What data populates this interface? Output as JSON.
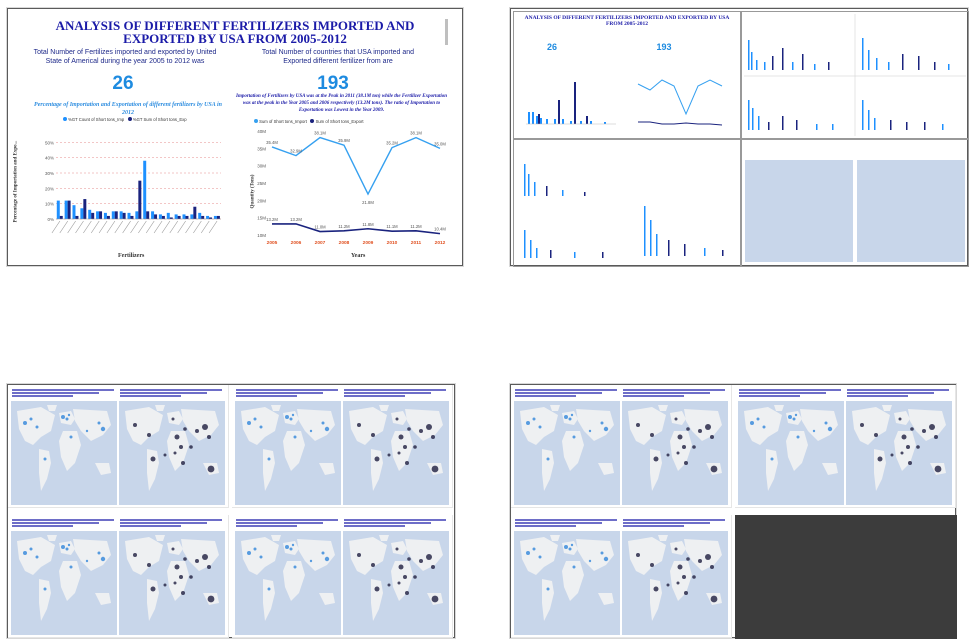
{
  "main_panel": {
    "title": "ANALYSIS OF DIFFERENT FERTILIZERS IMPORTED AND EXPORTED BY USA FROM 2005-2012",
    "left_caption": "Total Number of Fertilizes imported and exported by United State of Americal during the year 2005 to 2012 was",
    "left_number": "26",
    "right_caption": "Total Number of countries that USA imported and Exported different fertilizer from are",
    "right_number": "193",
    "bar_subtitle": "Percentage of Importation and Exportation of different fertilizers by USA in 2012",
    "line_subtitle": "Importation of Fertilizers by USA was at the Peak in 2011 (38.1M ton) while the Fertilizer Exportation was at the peak in the Year 2005 and 2006 respectively (13.2M tons). The ratio of Importation to Exportation was Lowest in the Year 2009.",
    "bar_legend": [
      "%GT Count of Short tons_Imp",
      "%GT Sum of Short tons_Exp"
    ],
    "line_legend": [
      "Sum of Short tons_Import",
      "Sum of Short tons_Export"
    ],
    "bar_xlabel": "Fertilizers",
    "bar_ylabel": "Percentage of Importation and Expo...",
    "line_xlabel": "Years",
    "line_ylabel": "Quantity (Tons)"
  },
  "colors": {
    "title": "#1b1ba8",
    "import": "#1e90ff",
    "export": "#1a237e",
    "line_import": "#35a0f0",
    "line_export": "#1a237e",
    "dark_tile": "#3c3c3c"
  },
  "chart_data": [
    {
      "type": "bar",
      "title": "Percentage of Importation and Exportation of different fertilizers by USA in 2012",
      "xlabel": "Fertilizers",
      "ylabel": "Percentage of Importation and Expo...",
      "ylim": [
        0,
        60
      ],
      "yticks": [
        "0%",
        "10%",
        "20%",
        "30%",
        "40%",
        "50%"
      ],
      "series": [
        {
          "name": "%GT Count of Short tons_Imp",
          "values": [
            12,
            12,
            9,
            7,
            6,
            5,
            4,
            5,
            5,
            4,
            5,
            38,
            5,
            3,
            4,
            3,
            3,
            3,
            4,
            2,
            2
          ]
        },
        {
          "name": "%GT Sum of Short tons_Exp",
          "values": [
            2,
            12,
            2,
            13,
            4,
            5,
            2,
            5,
            4,
            2,
            25,
            5,
            3,
            2,
            1,
            2,
            2,
            8,
            2,
            1,
            2
          ]
        }
      ],
      "grid": true,
      "legend": "top-left"
    },
    {
      "type": "line",
      "title": "Importation of Fertilizers by USA was at the Peak in 2011 (38.1M ton) while the Fertilizer Exportation was at the peak in the Year 2005 and 2006 respectively (13.2M tons). The ratio of Importation to Exportation was Lowest in the Year 2009.",
      "xlabel": "Years",
      "ylabel": "Quantity (Tons)",
      "x": [
        "2005",
        "2006",
        "2007",
        "2008",
        "2009",
        "2010",
        "2011",
        "2012"
      ],
      "yticks": [
        "10M",
        "15M",
        "20M",
        "25M",
        "30M",
        "35M",
        "40M"
      ],
      "ylim": [
        10,
        40
      ],
      "series": [
        {
          "name": "Sum of Short tons_Import",
          "values": [
            35.4,
            32.9,
            38.1,
            35.9,
            21.8,
            35.2,
            38.1,
            35.0
          ],
          "labels": [
            "35.4M",
            "32.9M",
            "38.1M",
            "35.9M",
            "21.8M",
            "35.2M",
            "38.1M",
            "35.0M"
          ]
        },
        {
          "name": "Sum of Short tons_Export",
          "values": [
            13.2,
            13.2,
            11.0,
            11.2,
            11.8,
            11.1,
            11.2,
            10.4
          ],
          "labels": [
            "13.2M",
            "13.2M",
            "11.0M",
            "11.2M",
            "11.8M",
            "11.1M",
            "11.2M",
            "10.4M"
          ]
        }
      ],
      "grid": false,
      "legend": "top-left"
    }
  ],
  "thumb_top_right": {
    "title": "ANALYSIS OF DIFFERENT FERTILIZERS IMPORTED AND EXPORTED BY USA FROM 2005-2012",
    "number_left": "26",
    "number_right": "193"
  }
}
